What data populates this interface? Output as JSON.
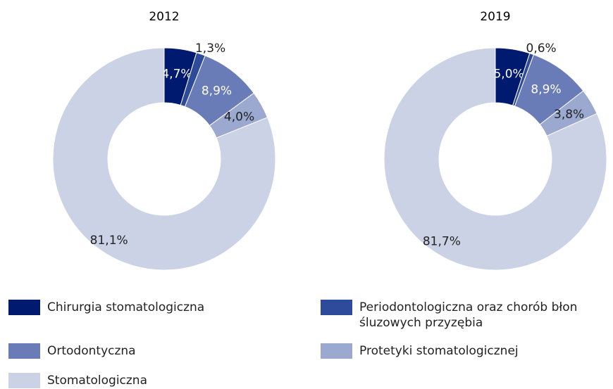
{
  "chart_data": [
    {
      "type": "pie",
      "title": "2012",
      "categories": [
        "Chirurgia stomatologiczna",
        "Periodontologiczna oraz chorób błon śluzowych przyzębia",
        "Ortodontyczna",
        "Protetyki stomatologicznej",
        "Stomatologiczna"
      ],
      "values": [
        4.7,
        1.3,
        8.9,
        4.0,
        81.1
      ],
      "value_labels": [
        "4,7%",
        "1,3%",
        "8,9%",
        "4,0%",
        "81,1%"
      ],
      "colors": [
        "#001a70",
        "#2e4a9a",
        "#6a7cb8",
        "#9ba8d0",
        "#ccd2e6"
      ]
    },
    {
      "type": "pie",
      "title": "2019",
      "categories": [
        "Chirurgia stomatologiczna",
        "Periodontologiczna oraz chorób błon śluzowych przyzębia",
        "Ortodontyczna",
        "Protetyki stomatologicznej",
        "Stomatologiczna"
      ],
      "values": [
        5.0,
        0.6,
        8.9,
        3.8,
        81.7
      ],
      "value_labels": [
        "5,0%",
        "0,6%",
        "8,9%",
        "3,8%",
        "81,7%"
      ],
      "colors": [
        "#001a70",
        "#2e4a9a",
        "#6a7cb8",
        "#9ba8d0",
        "#ccd2e6"
      ]
    }
  ]
}
